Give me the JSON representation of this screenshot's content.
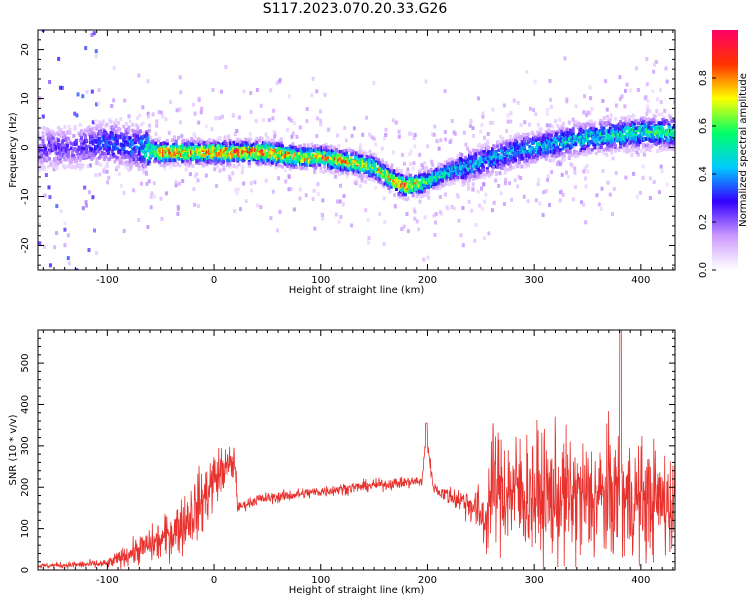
{
  "title": "S117.2023.070.20.33.G26",
  "colors": {
    "snr_line": "#e8302c",
    "axis": "#000000"
  },
  "chart_data": [
    {
      "type": "heatmap",
      "xlabel": "Height of straight line (km)",
      "ylabel": "Frequency (Hz)",
      "xlim": [
        -165,
        432
      ],
      "ylim": [
        -25,
        24
      ],
      "x_ticks": [
        -100,
        0,
        100,
        200,
        300,
        400
      ],
      "y_ticks": [
        -20,
        -10,
        0,
        10,
        20
      ],
      "colorbar": {
        "label": "Normalized spectral amplitude",
        "range": [
          0,
          1
        ],
        "ticks": [
          0.0,
          0.2,
          0.4,
          0.6,
          0.8
        ],
        "colormap": [
          "#ffffff",
          "#cc99ff",
          "#3300ff",
          "#00ccff",
          "#00ff66",
          "#ffff00",
          "#ff3300",
          "#ff0066"
        ]
      },
      "ridge": {
        "x": [
          -130,
          -100,
          -70,
          -50,
          -20,
          0,
          50,
          80,
          100,
          130,
          150,
          170,
          180,
          200,
          220,
          250,
          280,
          300,
          350,
          400,
          432
        ],
        "freq": [
          0,
          1,
          0,
          -1,
          -1,
          -1,
          -1,
          -2,
          -2,
          -3,
          -4,
          -7,
          -8,
          -7,
          -5,
          -3,
          -1,
          0,
          2,
          3,
          3
        ],
        "peak": [
          0.25,
          0.35,
          0.4,
          0.85,
          0.8,
          0.85,
          0.9,
          0.75,
          0.8,
          0.8,
          0.7,
          0.85,
          0.85,
          0.6,
          0.5,
          0.45,
          0.45,
          0.45,
          0.5,
          0.55,
          0.55
        ]
      }
    },
    {
      "type": "line",
      "xlabel": "Height of straight line (km)",
      "ylabel": "SNR (10 * v/v)",
      "xlim": [
        -165,
        432
      ],
      "ylim": [
        0,
        580
      ],
      "x_ticks": [
        -100,
        0,
        100,
        200,
        300,
        400
      ],
      "y_ticks": [
        0,
        100,
        200,
        300,
        400,
        500
      ],
      "series": [
        {
          "envelope_x": [
            -165,
            -100,
            -70,
            -50,
            -30,
            -10,
            0,
            10,
            20,
            22,
            40,
            100,
            150,
            195,
            199,
            205,
            210,
            240,
            255,
            260,
            300,
            350,
            380,
            385,
            400,
            432
          ],
          "envelope_mean": [
            10,
            15,
            50,
            70,
            110,
            170,
            220,
            245,
            260,
            150,
            170,
            190,
            205,
            215,
            330,
            205,
            190,
            160,
            120,
            200,
            180,
            170,
            180,
            170,
            170,
            160
          ],
          "envelope_noise": [
            4,
            8,
            25,
            35,
            50,
            60,
            50,
            40,
            30,
            8,
            10,
            10,
            10,
            10,
            20,
            10,
            10,
            30,
            60,
            100,
            110,
            110,
            110,
            110,
            100,
            90
          ],
          "peaks": [
            {
              "x": 381,
              "y": 580
            },
            {
              "x": 199,
              "y": 355
            }
          ]
        }
      ]
    }
  ]
}
